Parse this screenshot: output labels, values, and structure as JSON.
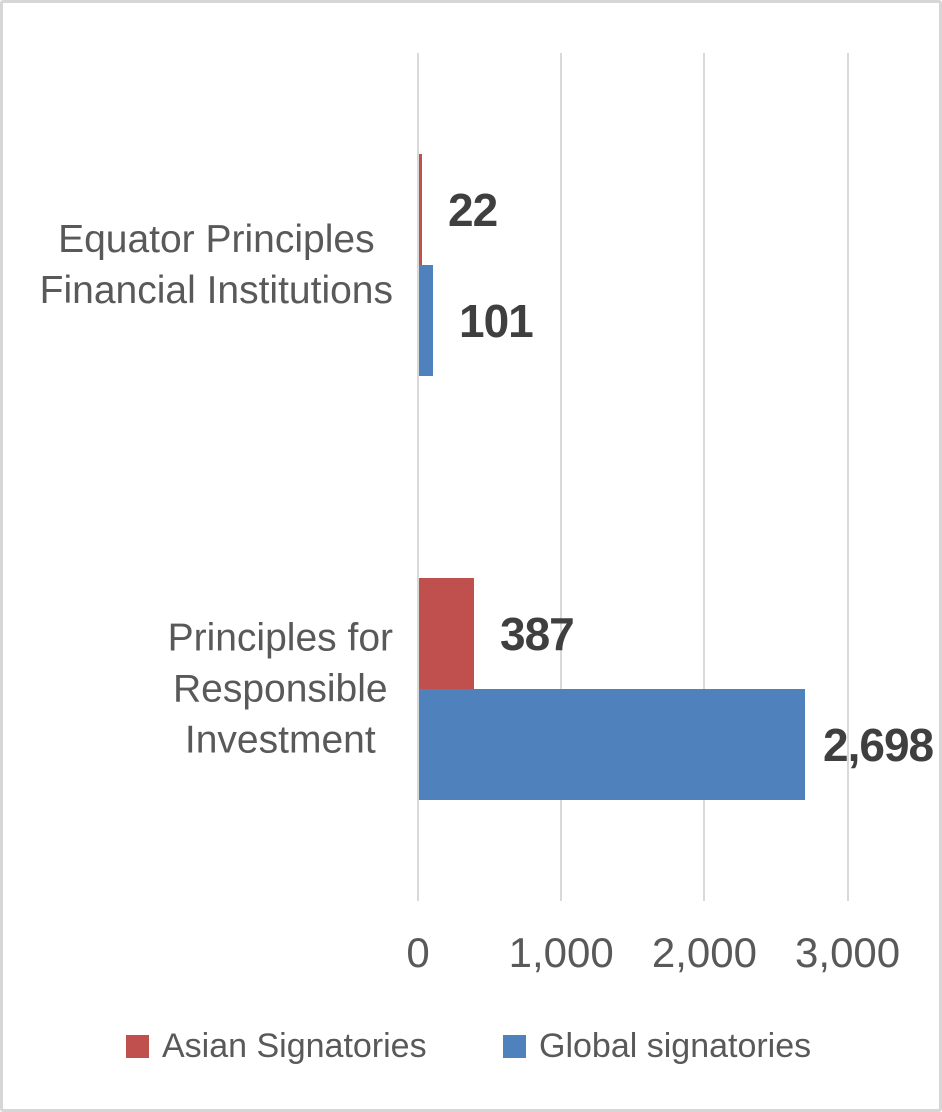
{
  "chart_data": {
    "type": "bar",
    "orientation": "horizontal",
    "title": "",
    "xlabel": "",
    "ylabel": "",
    "categories": [
      "Equator Principles Financial Institutions",
      "Principles for Responsible Investment"
    ],
    "category_label_lines": [
      [
        "Equator Principles",
        "Financial Institutions"
      ],
      [
        "Principles for",
        "Responsible",
        "Investment"
      ]
    ],
    "series": [
      {
        "name": "Asian Signatories",
        "color": "#C0504D",
        "values": [
          22,
          387
        ],
        "value_labels": [
          "22",
          "387"
        ]
      },
      {
        "name": "Global signatories",
        "color": "#4F81BD",
        "values": [
          101,
          2698
        ],
        "value_labels": [
          "101",
          "2,698"
        ]
      }
    ],
    "x_ticks": [
      {
        "value": 0,
        "label": "0"
      },
      {
        "value": 1000,
        "label": "1,000"
      },
      {
        "value": 2000,
        "label": "2,000"
      },
      {
        "value": 3000,
        "label": "3,000"
      }
    ],
    "xlim": [
      0,
      3400
    ],
    "grid": "vertical",
    "legend_position": "bottom",
    "colors": {
      "grid": "#D9D9D9",
      "axis_text": "#595959",
      "category_text": "#595959",
      "data_label_text": "#3F3F3F",
      "legend_text": "#595959",
      "background": "#FFFFFF",
      "border": "#D6D6D6"
    }
  }
}
